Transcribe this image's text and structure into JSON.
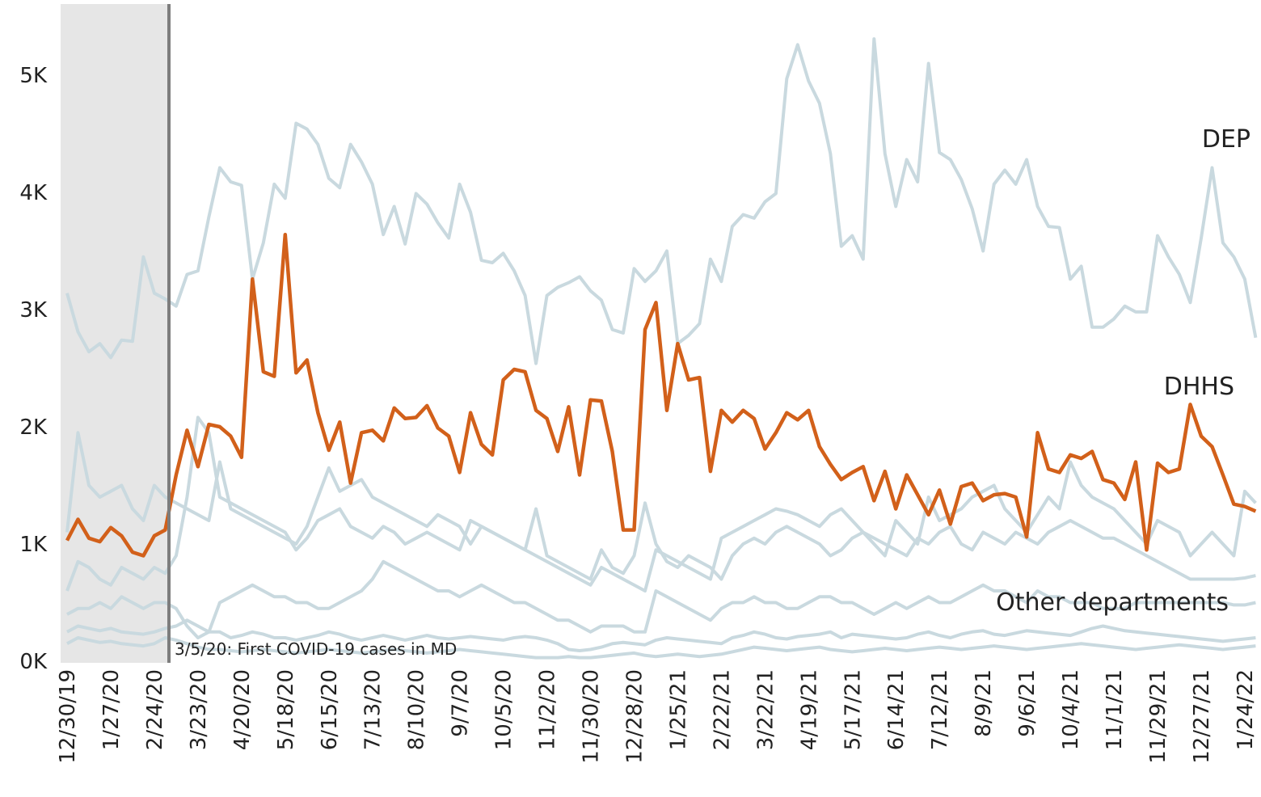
{
  "chart_data": {
    "type": "line",
    "categories": [
      "12/30/19",
      null,
      null,
      null,
      "1/27/20",
      null,
      null,
      null,
      "2/24/20",
      null,
      null,
      null,
      "3/23/20",
      null,
      null,
      null,
      "4/20/20",
      null,
      null,
      null,
      "5/18/20",
      null,
      null,
      null,
      "6/15/20",
      null,
      null,
      null,
      "7/13/20",
      null,
      null,
      null,
      "8/10/20",
      null,
      null,
      null,
      "9/7/20",
      null,
      null,
      null,
      "10/5/20",
      null,
      null,
      null,
      "11/2/20",
      null,
      null,
      null,
      "11/30/20",
      null,
      null,
      null,
      "12/28/20",
      null,
      null,
      null,
      "1/25/21",
      null,
      null,
      null,
      "2/22/21",
      null,
      null,
      null,
      "3/22/21",
      null,
      null,
      null,
      "4/19/21",
      null,
      null,
      null,
      "5/17/21",
      null,
      null,
      null,
      "6/14/21",
      null,
      null,
      null,
      "7/12/21",
      null,
      null,
      null,
      "8/9/21",
      null,
      null,
      null,
      "9/6/21",
      null,
      null,
      null,
      "10/4/21",
      null,
      null,
      null,
      "11/1/21",
      null,
      null,
      null,
      "11/29/21",
      null,
      null,
      null,
      "12/27/21",
      null,
      null,
      null,
      "1/24/22",
      null
    ],
    "ylim": [
      0,
      5600
    ],
    "yticks": [
      {
        "value": 0,
        "label": "0K"
      },
      {
        "value": 1000,
        "label": "1K"
      },
      {
        "value": 2000,
        "label": "2K"
      },
      {
        "value": 3000,
        "label": "3K"
      },
      {
        "value": 4000,
        "label": "4K"
      },
      {
        "value": 5000,
        "label": "5K"
      }
    ],
    "grid": false,
    "annotations": [
      "3/5/20: First COVID-19 cases in MD",
      "Other departments"
    ],
    "series": [
      {
        "color": "#c9d9df",
        "values": [
          1100,
          1950,
          1500,
          1400,
          1450,
          1500,
          1300,
          1200,
          1500,
          1400,
          1350,
          1300,
          1250,
          1200,
          1700,
          1300,
          1250,
          1200,
          1150,
          1100,
          1050,
          1000,
          1150,
          1400,
          1650,
          1450,
          1500,
          1550,
          1400,
          1350,
          1300,
          1250,
          1200,
          1150,
          1250,
          1200,
          1150,
          1000,
          1150,
          1100,
          1050,
          1000,
          950,
          1300,
          900,
          850,
          800,
          750,
          700,
          950,
          800,
          750,
          900,
          1350,
          1000,
          850,
          800,
          900,
          850,
          800,
          700,
          900,
          1000,
          1050,
          1000,
          1100,
          1150,
          1100,
          1050,
          1000,
          900,
          950,
          1050,
          1100,
          1000,
          900,
          1200,
          1100,
          1000,
          1400,
          1200,
          1250,
          1300,
          1400,
          1450,
          1500,
          1300,
          1200,
          1100,
          1250,
          1400,
          1300,
          1700,
          1500,
          1400,
          1350,
          1300,
          1200,
          1100,
          1000,
          1200,
          1150,
          1100,
          900,
          1000,
          1100,
          1000,
          900,
          1450,
          1350
        ]
      },
      {
        "color": "#c9d9df",
        "values": [
          600,
          850,
          800,
          700,
          650,
          800,
          750,
          700,
          800,
          750,
          900,
          1400,
          2080,
          1950,
          1400,
          1350,
          1300,
          1250,
          1200,
          1150,
          1100,
          950,
          1050,
          1200,
          1250,
          1300,
          1150,
          1100,
          1050,
          1150,
          1100,
          1000,
          1050,
          1100,
          1050,
          1000,
          950,
          1200,
          1150,
          1100,
          1050,
          1000,
          950,
          900,
          850,
          800,
          750,
          700,
          650,
          800,
          750,
          700,
          650,
          600,
          950,
          900,
          850,
          800,
          750,
          700,
          1050,
          1100,
          1150,
          1200,
          1250,
          1300,
          1280,
          1250,
          1200,
          1150,
          1250,
          1300,
          1200,
          1100,
          1050,
          1000,
          950,
          900,
          1050,
          1000,
          1100,
          1150,
          1000,
          950,
          1100,
          1050,
          1000,
          1100,
          1050,
          1000,
          1100,
          1150,
          1200,
          1150,
          1100,
          1050,
          1050,
          1000,
          950,
          900,
          850,
          800,
          750,
          700,
          700,
          700,
          700,
          700,
          710,
          730
        ]
      },
      {
        "color": "#c9d9df",
        "values": [
          400,
          450,
          450,
          500,
          450,
          550,
          500,
          450,
          500,
          500,
          450,
          300,
          200,
          250,
          500,
          550,
          600,
          650,
          600,
          550,
          550,
          500,
          500,
          450,
          450,
          500,
          550,
          600,
          700,
          850,
          800,
          750,
          700,
          650,
          600,
          600,
          550,
          600,
          650,
          600,
          550,
          500,
          500,
          450,
          400,
          350,
          350,
          300,
          250,
          300,
          300,
          300,
          250,
          250,
          600,
          550,
          500,
          450,
          400,
          350,
          450,
          500,
          500,
          550,
          500,
          500,
          450,
          450,
          500,
          550,
          550,
          500,
          500,
          450,
          400,
          450,
          500,
          450,
          500,
          550,
          500,
          500,
          550,
          600,
          650,
          600,
          600,
          550,
          500,
          600,
          550,
          550,
          500,
          500,
          500,
          450,
          450,
          450,
          500,
          500,
          500,
          500,
          500,
          500,
          500,
          500,
          500,
          480,
          480,
          500
        ]
      },
      {
        "color": "#c9d9df",
        "values": [
          250,
          300,
          280,
          260,
          280,
          250,
          240,
          230,
          250,
          280,
          300,
          350,
          300,
          250,
          250,
          200,
          220,
          250,
          230,
          200,
          200,
          180,
          200,
          220,
          250,
          230,
          200,
          180,
          200,
          220,
          200,
          180,
          200,
          220,
          200,
          190,
          200,
          210,
          200,
          190,
          180,
          200,
          210,
          200,
          180,
          150,
          100,
          90,
          100,
          120,
          150,
          160,
          150,
          140,
          180,
          200,
          190,
          180,
          170,
          160,
          150,
          200,
          220,
          250,
          230,
          200,
          190,
          210,
          220,
          230,
          250,
          200,
          230,
          220,
          210,
          200,
          190,
          200,
          230,
          250,
          220,
          200,
          230,
          250,
          260,
          230,
          220,
          240,
          260,
          250,
          240,
          230,
          220,
          250,
          280,
          300,
          280,
          260,
          250,
          240,
          230,
          220,
          210,
          200,
          190,
          180,
          170,
          180,
          190,
          200
        ]
      },
      {
        "color": "#c9d9df",
        "values": [
          150,
          200,
          180,
          160,
          170,
          150,
          140,
          130,
          150,
          200,
          180,
          150,
          120,
          100,
          100,
          90,
          80,
          90,
          100,
          90,
          80,
          70,
          80,
          90,
          100,
          90,
          80,
          70,
          80,
          90,
          100,
          90,
          80,
          70,
          80,
          90,
          100,
          90,
          80,
          70,
          60,
          50,
          40,
          30,
          30,
          30,
          40,
          30,
          30,
          40,
          50,
          60,
          70,
          50,
          40,
          50,
          60,
          50,
          40,
          50,
          60,
          80,
          100,
          120,
          110,
          100,
          90,
          100,
          110,
          120,
          100,
          90,
          80,
          90,
          100,
          110,
          100,
          90,
          100,
          110,
          120,
          110,
          100,
          110,
          120,
          130,
          120,
          110,
          100,
          110,
          120,
          130,
          140,
          150,
          140,
          130,
          120,
          110,
          100,
          110,
          120,
          130,
          140,
          130,
          120,
          110,
          100,
          110,
          120,
          130
        ]
      },
      {
        "name": "DEP",
        "color": "#c9d9df",
        "values": [
          3140,
          2810,
          2640,
          2710,
          2590,
          2740,
          2730,
          3450,
          3140,
          3090,
          3030,
          3300,
          3330,
          3790,
          4210,
          4090,
          4060,
          3260,
          3570,
          4070,
          3950,
          4590,
          4540,
          4410,
          4120,
          4040,
          4410,
          4260,
          4070,
          3640,
          3880,
          3560,
          3990,
          3900,
          3740,
          3610,
          4070,
          3830,
          3420,
          3400,
          3480,
          3330,
          3120,
          2540,
          3120,
          3190,
          3230,
          3280,
          3160,
          3080,
          2830,
          2800,
          3350,
          3240,
          3330,
          3500,
          2710,
          2780,
          2880,
          3430,
          3240,
          3710,
          3810,
          3780,
          3920,
          3990,
          4970,
          5260,
          4950,
          4760,
          4330,
          3540,
          3630,
          3430,
          5310,
          4330,
          3880,
          4280,
          4090,
          5100,
          4340,
          4280,
          4110,
          3860,
          3500,
          4070,
          4190,
          4070,
          4280,
          3880,
          3710,
          3700,
          3260,
          3370,
          2850,
          2850,
          2920,
          3030,
          2980,
          2980,
          3630,
          3450,
          3300,
          3060,
          3610,
          4210,
          3570,
          3450,
          3260,
          2760
        ]
      },
      {
        "name": "DHHS",
        "color": "#d2601a",
        "values": [
          1030,
          1210,
          1050,
          1020,
          1140,
          1070,
          930,
          900,
          1070,
          1120,
          1590,
          1970,
          1660,
          2020,
          2000,
          1920,
          1740,
          3260,
          2470,
          2430,
          3640,
          2460,
          2570,
          2120,
          1800,
          2040,
          1520,
          1950,
          1970,
          1880,
          2160,
          2070,
          2080,
          2180,
          1990,
          1920,
          1610,
          2120,
          1850,
          1760,
          2400,
          2490,
          2470,
          2140,
          2070,
          1790,
          2170,
          1590,
          2230,
          2220,
          1790,
          1120,
          1120,
          2830,
          3060,
          2140,
          2710,
          2400,
          2420,
          1620,
          2140,
          2040,
          2140,
          2070,
          1810,
          1950,
          2120,
          2060,
          2140,
          1830,
          1680,
          1550,
          1610,
          1660,
          1370,
          1620,
          1300,
          1590,
          1420,
          1250,
          1460,
          1170,
          1490,
          1520,
          1370,
          1420,
          1430,
          1400,
          1060,
          1950,
          1640,
          1610,
          1760,
          1730,
          1790,
          1550,
          1520,
          1380,
          1700,
          950,
          1690,
          1610,
          1640,
          2190,
          1920,
          1830,
          1590,
          1340,
          1320,
          1280
        ]
      }
    ]
  }
}
